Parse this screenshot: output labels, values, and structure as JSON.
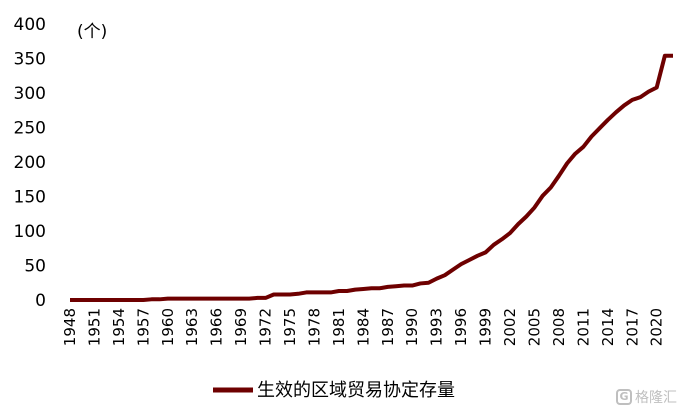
{
  "chart_data": {
    "type": "line",
    "title": "",
    "unit_label": "(个)",
    "xlabel": "",
    "ylabel": "",
    "ylim": [
      0,
      400
    ],
    "y_ticks": [
      0,
      50,
      100,
      150,
      200,
      250,
      300,
      350,
      400
    ],
    "x_tick_labels": [
      "1948",
      "1951",
      "1954",
      "1957",
      "1960",
      "1963",
      "1966",
      "1969",
      "1972",
      "1975",
      "1978",
      "1981",
      "1984",
      "1987",
      "1990",
      "1993",
      "1996",
      "1999",
      "2002",
      "2005",
      "2008",
      "2011",
      "2014",
      "2017",
      "2020"
    ],
    "grid": false,
    "legend": "bottom",
    "color": "#6e0000",
    "series": [
      {
        "name": "生效的区域贸易协定存量",
        "x": [
          1948,
          1949,
          1950,
          1951,
          1952,
          1953,
          1954,
          1955,
          1956,
          1957,
          1958,
          1959,
          1960,
          1961,
          1962,
          1963,
          1964,
          1965,
          1966,
          1967,
          1968,
          1969,
          1970,
          1971,
          1972,
          1973,
          1974,
          1975,
          1976,
          1977,
          1978,
          1979,
          1980,
          1981,
          1982,
          1983,
          1984,
          1985,
          1986,
          1987,
          1988,
          1989,
          1990,
          1991,
          1992,
          1993,
          1994,
          1995,
          1996,
          1997,
          1998,
          1999,
          2000,
          2001,
          2002,
          2003,
          2004,
          2005,
          2006,
          2007,
          2008,
          2009,
          2010,
          2011,
          2012,
          2013,
          2014,
          2015,
          2016,
          2017,
          2018,
          2019,
          2020,
          2021,
          2022
        ],
        "values": [
          0,
          0,
          0,
          0,
          0,
          0,
          0,
          0,
          0,
          0,
          1,
          1,
          2,
          2,
          2,
          2,
          2,
          2,
          2,
          2,
          2,
          2,
          2,
          3,
          3,
          8,
          8,
          8,
          9,
          11,
          11,
          11,
          11,
          13,
          13,
          15,
          16,
          17,
          17,
          19,
          20,
          21,
          21,
          24,
          25,
          31,
          36,
          44,
          52,
          58,
          64,
          69,
          80,
          88,
          97,
          110,
          121,
          134,
          151,
          163,
          180,
          198,
          212,
          222,
          237,
          249,
          261,
          272,
          282,
          290,
          294,
          302,
          308,
          354,
          354
        ]
      }
    ]
  },
  "watermark": {
    "logo": "G",
    "text": "格隆汇"
  }
}
